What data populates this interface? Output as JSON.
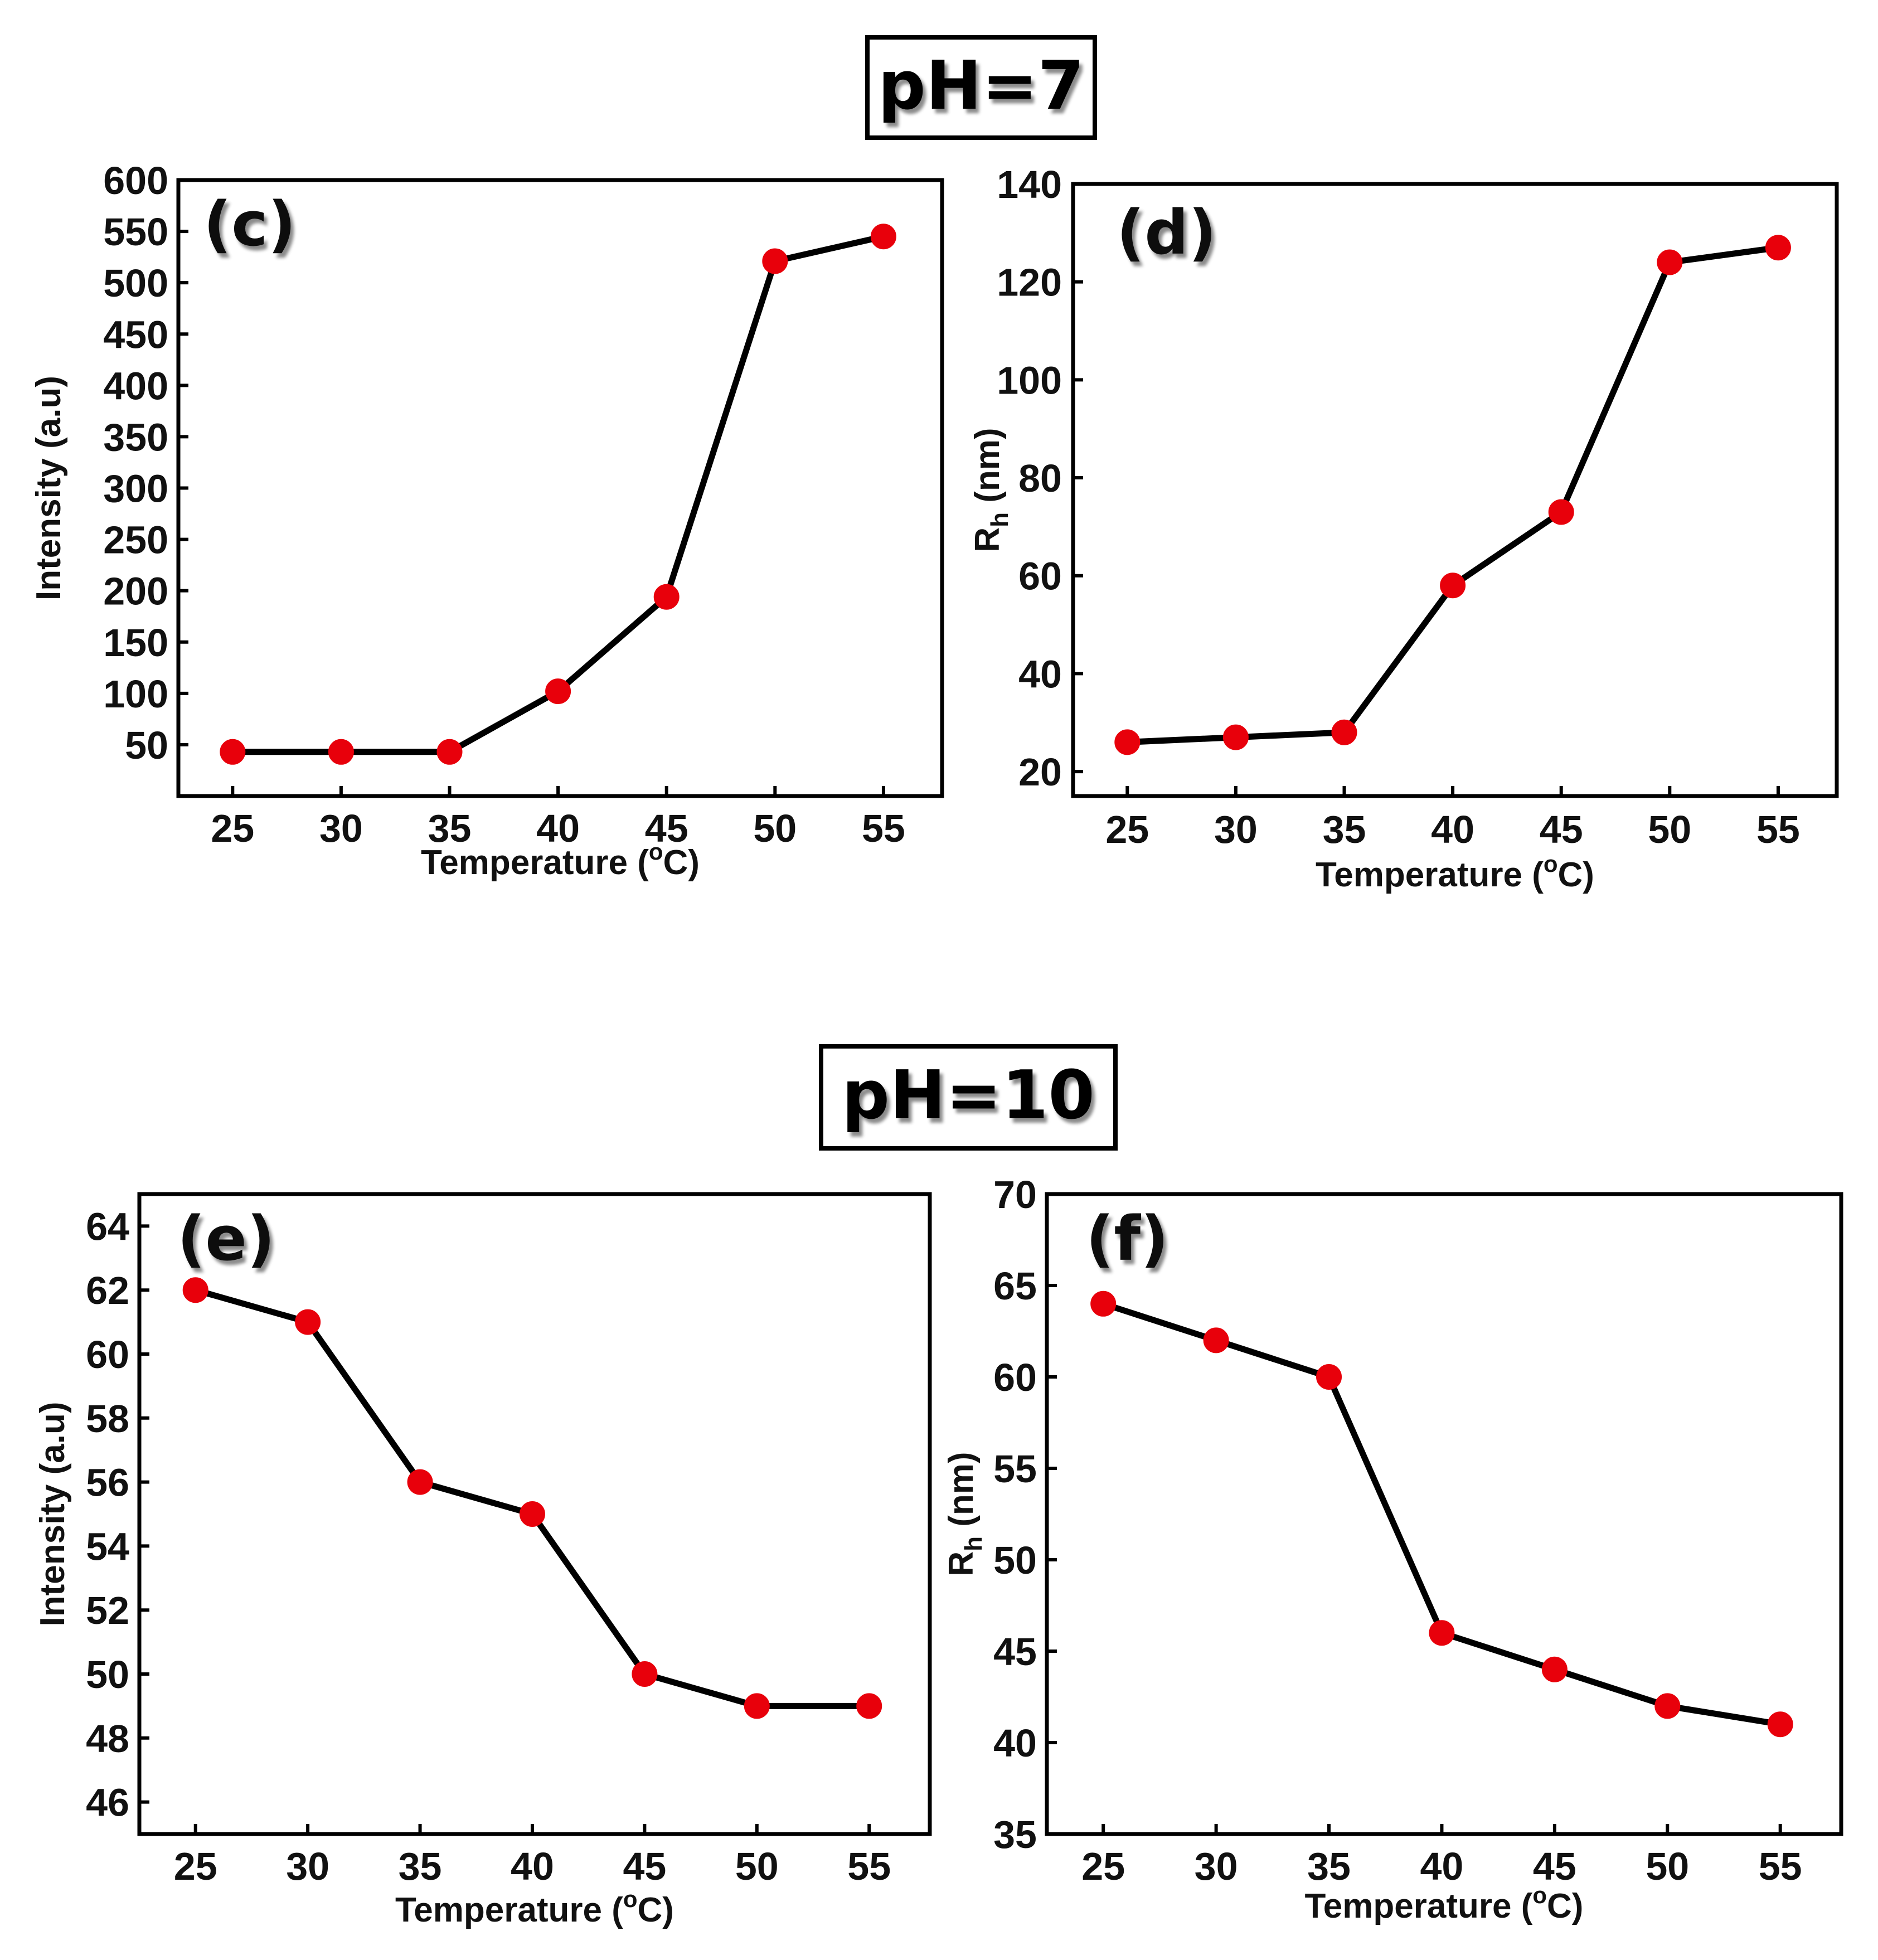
{
  "sections": [
    {
      "title": "pH=7"
    },
    {
      "title": "pH=10"
    }
  ],
  "chart_data": [
    {
      "type": "line",
      "panel": "(c)",
      "title": "",
      "xlabel": "Temperature (°C)",
      "ylabel": "Intensity (a.u)",
      "x": [
        25,
        30,
        35,
        40,
        45,
        50,
        55
      ],
      "series": [
        {
          "name": "Intensity",
          "values": [
            43,
            43,
            43,
            102,
            194,
            521,
            545
          ]
        }
      ],
      "xticks": [
        "25",
        "30",
        "35",
        "40",
        "45",
        "50",
        "55"
      ],
      "yticks": [
        "50",
        "100",
        "150",
        "200",
        "250",
        "300",
        "350",
        "400",
        "450",
        "500",
        "550",
        "600"
      ],
      "ylim": [
        0,
        600
      ],
      "xlim": [
        22.5,
        57.7
      ],
      "grid": false,
      "line_color": "#000000",
      "marker_color": "#e8000b"
    },
    {
      "type": "line",
      "panel": "(d)",
      "title": "",
      "xlabel": "Temperature (°C)",
      "ylabel": "Rh (nm)",
      "ylabel_main": "R",
      "ylabel_sub": "h",
      "ylabel_rest": " (nm)",
      "x": [
        25,
        30,
        35,
        40,
        45,
        50,
        55
      ],
      "series": [
        {
          "name": "Rh",
          "values": [
            26,
            27,
            28,
            58,
            73,
            124,
            127
          ]
        }
      ],
      "xticks": [
        "25",
        "30",
        "35",
        "40",
        "45",
        "50",
        "55"
      ],
      "yticks": [
        "20",
        "40",
        "60",
        "80",
        "100",
        "120",
        "140"
      ],
      "ylim": [
        15,
        140
      ],
      "xlim": [
        22.5,
        57.7
      ],
      "grid": false,
      "line_color": "#000000",
      "marker_color": "#e8000b"
    },
    {
      "type": "line",
      "panel": "(e)",
      "title": "",
      "xlabel": "Temperature (°C)",
      "ylabel": "Intensity (a.u)",
      "x": [
        25,
        30,
        35,
        40,
        45,
        50,
        55
      ],
      "series": [
        {
          "name": "Intensity",
          "values": [
            62,
            61,
            56,
            55,
            50,
            49,
            49
          ]
        }
      ],
      "xticks": [
        "25",
        "30",
        "35",
        "40",
        "45",
        "50",
        "55"
      ],
      "yticks": [
        "46",
        "48",
        "50",
        "52",
        "54",
        "56",
        "58",
        "60",
        "62",
        "64"
      ],
      "ylim": [
        45,
        65
      ],
      "xlim": [
        22.5,
        57.7
      ],
      "grid": false,
      "line_color": "#000000",
      "marker_color": "#e8000b"
    },
    {
      "type": "line",
      "panel": "(f)",
      "title": "",
      "xlabel": "Temperature (°C)",
      "ylabel": "Rh (nm)",
      "ylabel_main": "R",
      "ylabel_sub": "h",
      "ylabel_rest": " (nm)",
      "x": [
        25,
        30,
        35,
        40,
        45,
        50,
        55
      ],
      "series": [
        {
          "name": "Rh",
          "values": [
            64,
            62,
            60,
            46,
            44,
            42,
            41
          ]
        }
      ],
      "xticks": [
        "25",
        "30",
        "35",
        "40",
        "45",
        "50",
        "55"
      ],
      "yticks": [
        "35",
        "40",
        "45",
        "50",
        "55",
        "60",
        "65",
        "70"
      ],
      "ylim": [
        35,
        70
      ],
      "xlim": [
        22.5,
        57.7
      ],
      "grid": false,
      "line_color": "#000000",
      "marker_color": "#e8000b"
    }
  ]
}
